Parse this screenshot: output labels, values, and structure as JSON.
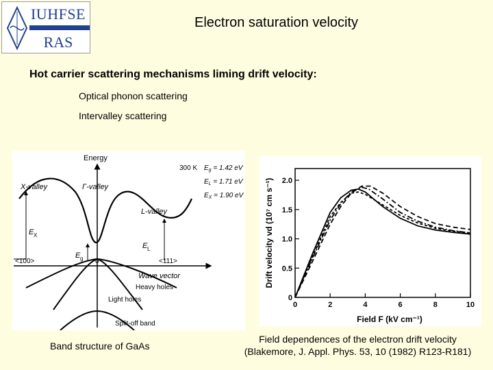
{
  "logo": {
    "org": "IUHFSE",
    "sub": "RAS"
  },
  "slide": {
    "title": "Electron saturation velocity",
    "heading": "Hot carrier scattering mechanisms liming drift velocity:",
    "bullets": [
      "Optical phonon scattering",
      "Intervalley scattering"
    ]
  },
  "band_figure": {
    "energy": "Energy",
    "temp": "300 K",
    "eg": "E",
    "eg_sub": "g",
    "eg_val": " = 1.42 eV",
    "el_sub": "L",
    "el_val": " = 1.71 eV",
    "ex_sub": "X",
    "ex_val": " = 1.90 eV",
    "x_valley": "X-valley",
    "gamma_valley": "Γ-valley",
    "l_valley": "L-valley",
    "ex_label": "E",
    "el_label": "E",
    "eg_label": "E",
    "dir100": "<100>",
    "dir111": "<111>",
    "zero": "0",
    "wave_vector": "Wave vector",
    "heavy_holes": "Heavy holes",
    "light_holes": "Light holes",
    "split_off": "Split-off band",
    "caption": "Band structure of GaAs"
  },
  "chart_data": {
    "type": "line",
    "title": "",
    "xlabel": "Field  F  (kV cm⁻¹)",
    "ylabel": "Drift velocity  vd  (10⁷ cm s⁻¹)",
    "xlim": [
      0,
      10
    ],
    "ylim": [
      0,
      2.2
    ],
    "xticks": [
      "0",
      "2",
      "4",
      "6",
      "8",
      "10"
    ],
    "yticks": [
      "0",
      "0.5",
      "1.0",
      "1.5",
      "2.0"
    ],
    "series": [
      {
        "style": "solid",
        "x": [
          0,
          1,
          2,
          2.6,
          3.2,
          3.6,
          4,
          5,
          6,
          7,
          8,
          9,
          10
        ],
        "y": [
          0,
          0.75,
          1.45,
          1.7,
          1.83,
          1.85,
          1.8,
          1.55,
          1.35,
          1.22,
          1.15,
          1.11,
          1.08
        ]
      },
      {
        "style": "dashed",
        "x": [
          0,
          1,
          2,
          2.6,
          3.2,
          3.8,
          4.3,
          5,
          6,
          7,
          8,
          9,
          10
        ],
        "y": [
          0,
          0.62,
          1.25,
          1.55,
          1.78,
          1.9,
          1.9,
          1.78,
          1.55,
          1.38,
          1.26,
          1.2,
          1.16
        ]
      },
      {
        "style": "dashdot",
        "x": [
          0,
          1,
          2,
          2.6,
          3.2,
          3.8,
          4.2,
          5,
          6,
          7,
          8,
          9,
          10
        ],
        "y": [
          0,
          0.68,
          1.32,
          1.6,
          1.8,
          1.88,
          1.85,
          1.68,
          1.45,
          1.3,
          1.2,
          1.14,
          1.1
        ]
      },
      {
        "style": "dashed2",
        "x": [
          0,
          1,
          2,
          2.6,
          3.2,
          3.6,
          4,
          5,
          6,
          7,
          8,
          9,
          10
        ],
        "y": [
          0,
          0.7,
          1.38,
          1.62,
          1.78,
          1.8,
          1.76,
          1.58,
          1.4,
          1.27,
          1.18,
          1.13,
          1.1
        ]
      }
    ],
    "caption_line1": "Field dependences of the electron drift velocity",
    "caption_line2": "(Blakemore, J. Appl. Phys. 53, 10 (1982) R123-R181)"
  }
}
